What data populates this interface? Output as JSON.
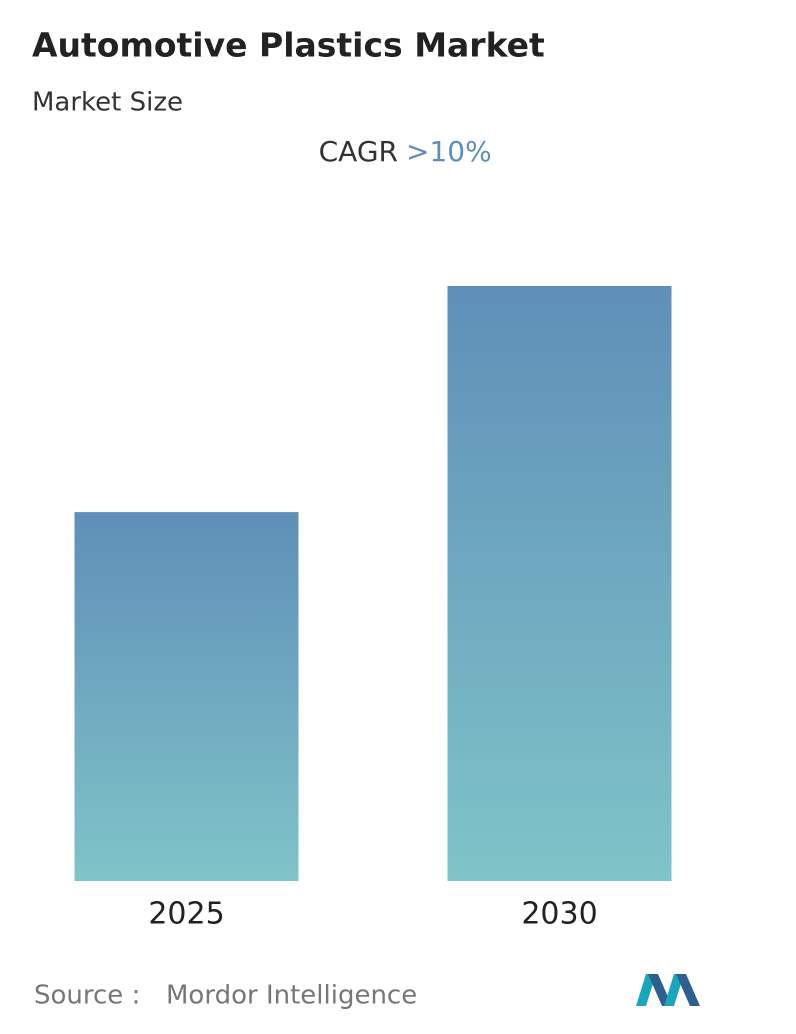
{
  "chart_data": {
    "type": "bar",
    "title": "Automotive Plastics Market",
    "subtitle": "Market Size",
    "cagr_label": "CAGR",
    "cagr_value": ">10%",
    "categories": [
      "2025",
      "2030"
    ],
    "values": [
      62,
      100
    ],
    "ylim": [
      0,
      100
    ],
    "grid": false,
    "source_label": "Source :",
    "source": "Mordor Intelligence"
  }
}
